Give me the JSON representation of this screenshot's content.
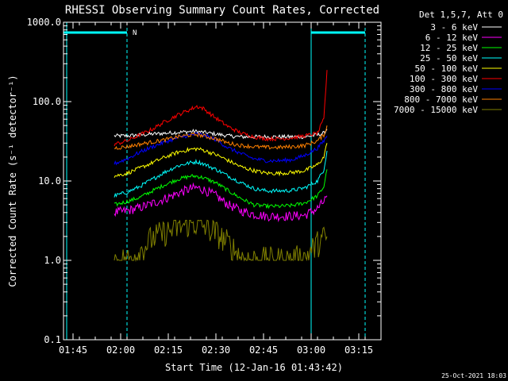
{
  "chart_data": {
    "type": "line",
    "title": "RHESSI Observing Summary Count Rates, Corrected",
    "xlabel": "Start Time (12-Jan-16 01:43:42)",
    "ylabel": "Corrected Count Rate (s⁻¹ detector⁻¹)",
    "y_scale": "log",
    "ylim": [
      0.1,
      1000
    ],
    "xlim": [
      "01:42",
      "03:22"
    ],
    "x_ticks": [
      "01:45",
      "02:00",
      "02:15",
      "02:30",
      "02:45",
      "03:00",
      "03:15"
    ],
    "y_ticks": [
      "0.1",
      "1.0",
      "10.0",
      "100.0",
      "1000.0"
    ],
    "legend_title": "Det 1,5,7, Att 0",
    "legend_position": "outside-top-right",
    "timestamp": "25-Oct-2021 18:03",
    "night_flag": "N",
    "night_color": "#00ffff",
    "night_intervals": [
      {
        "start": "01:43",
        "end": "02:02",
        "label_dashed": "02:02",
        "label_solid": "01:43"
      },
      {
        "start": "03:00",
        "end": "03:17",
        "label_solid": "03:00",
        "label_dashed": "03:17"
      }
    ],
    "x": [
      "01:58",
      "02:02",
      "02:06",
      "02:10",
      "02:14",
      "02:18",
      "02:22",
      "02:24",
      "02:26",
      "02:30",
      "02:34",
      "02:38",
      "02:42",
      "02:46",
      "02:50",
      "02:54",
      "02:58",
      "03:02",
      "03:04",
      "03:05"
    ],
    "series": [
      {
        "name": "3 - 6 keV",
        "color": "#ffffff",
        "values": [
          37,
          37,
          38,
          39,
          40,
          41,
          42,
          42,
          41,
          39,
          37,
          36,
          36,
          36,
          36,
          36,
          36,
          38,
          40,
          45
        ]
      },
      {
        "name": "6 - 12 keV",
        "color": "#ff00ff",
        "values": [
          4.0,
          4.2,
          4.6,
          5.2,
          6.0,
          7.0,
          8.0,
          8.2,
          7.8,
          6.5,
          5.0,
          4.2,
          3.8,
          3.6,
          3.6,
          3.6,
          3.7,
          4.5,
          5.5,
          6.5
        ]
      },
      {
        "name": "12 - 25 keV",
        "color": "#00ff00",
        "values": [
          5.0,
          5.5,
          6.2,
          7.5,
          9.0,
          10.5,
          11.5,
          11.5,
          11.0,
          9.5,
          7.5,
          6.0,
          5.0,
          4.8,
          4.8,
          4.9,
          5.3,
          6.5,
          8.5,
          14
        ]
      },
      {
        "name": "25 - 50 keV",
        "color": "#00ffff",
        "values": [
          6.5,
          7.2,
          8.5,
          10.5,
          13,
          15.5,
          17,
          17.5,
          16.5,
          14,
          11.5,
          9.5,
          8.0,
          7.5,
          7.5,
          7.6,
          8.2,
          10,
          14,
          24
        ]
      },
      {
        "name": "50 - 100 keV",
        "color": "#ffff00",
        "values": [
          11.5,
          12.5,
          14.5,
          17,
          20,
          23,
          25,
          25.5,
          24.5,
          21.5,
          18,
          15,
          13.5,
          12.5,
          12.5,
          12.8,
          13.5,
          16,
          20,
          30
        ]
      },
      {
        "name": "100 - 300 keV",
        "color": "#ff0000",
        "values": [
          29,
          32,
          38,
          45,
          56,
          68,
          80,
          87,
          82,
          62,
          48,
          40,
          36,
          34,
          34,
          35,
          37,
          40,
          60,
          250
        ]
      },
      {
        "name": "300 - 800 keV",
        "color": "#0000ff",
        "values": [
          16.5,
          19,
          23,
          27,
          31,
          35,
          38,
          39,
          38,
          33,
          26,
          22,
          19,
          18,
          18,
          18.5,
          21,
          26,
          32,
          37
        ]
      },
      {
        "name": "800 - 7000 keV",
        "color": "#ff8000",
        "values": [
          26,
          27,
          29,
          31,
          33,
          36,
          38,
          38.5,
          37,
          34,
          30,
          28,
          27,
          26.5,
          26.5,
          27,
          28,
          32,
          38,
          50
        ]
      },
      {
        "name": "7000 - 15000 keV",
        "color": "#808000",
        "values": [
          1.0,
          1.0,
          1.3,
          1.9,
          2.2,
          2.6,
          2.9,
          2.9,
          2.7,
          2.2,
          1.6,
          1.1,
          1.0,
          1.0,
          1.0,
          1.0,
          1.1,
          1.6,
          1.9,
          2.0
        ]
      }
    ]
  }
}
